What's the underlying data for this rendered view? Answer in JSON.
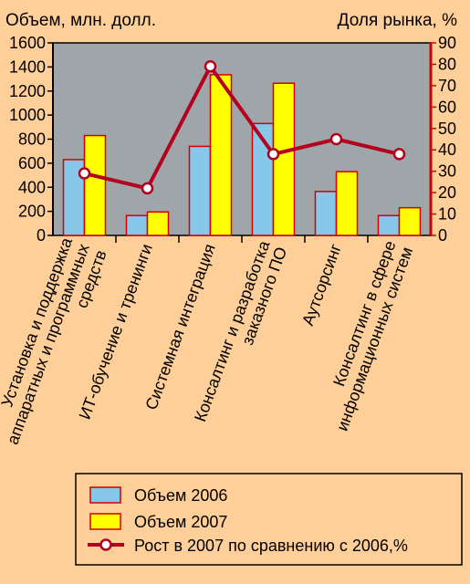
{
  "chart_data": {
    "type": "bar",
    "y_left_label": "Объем, млн. долл.",
    "y_right_label": "Доля рынка, %",
    "ylim_left": [
      0,
      1600
    ],
    "ylim_right": [
      0,
      90
    ],
    "left_ticks": [
      0,
      200,
      400,
      600,
      800,
      1000,
      1200,
      1400,
      1600
    ],
    "right_ticks": [
      0,
      10,
      20,
      30,
      40,
      50,
      60,
      70,
      80,
      90
    ],
    "categories": [
      [
        "Установка и поддержка",
        "аппаратных и программных",
        "средств"
      ],
      [
        "ИТ-обучение и тренинги"
      ],
      [
        "Системная интеграция"
      ],
      [
        "Консалтинг и разработка",
        "заказного ПО"
      ],
      [
        "Аутсорсинг"
      ],
      [
        "Консалтинг в сфере",
        "информационных систем"
      ]
    ],
    "series": [
      {
        "name": "Объем 2006",
        "axis": "left",
        "kind": "bar",
        "color": "#87c8ea",
        "values": [
          630,
          165,
          740,
          930,
          365,
          165
        ]
      },
      {
        "name": "Объем 2007",
        "axis": "left",
        "kind": "bar",
        "color": "#ffff00",
        "values": [
          830,
          195,
          1335,
          1265,
          530,
          230
        ]
      },
      {
        "name": "Рост в 2007 по сравнению с 2006,%",
        "axis": "right",
        "kind": "line",
        "color": "#b3001f",
        "values": [
          29,
          22,
          79,
          38,
          45,
          38
        ]
      }
    ],
    "colors": {
      "background": "#ffcf99",
      "plot": "#9fa6a9",
      "left_axis": "#000000",
      "right_axis": "#d40000"
    },
    "grid": false,
    "legend_position": "bottom-right"
  }
}
